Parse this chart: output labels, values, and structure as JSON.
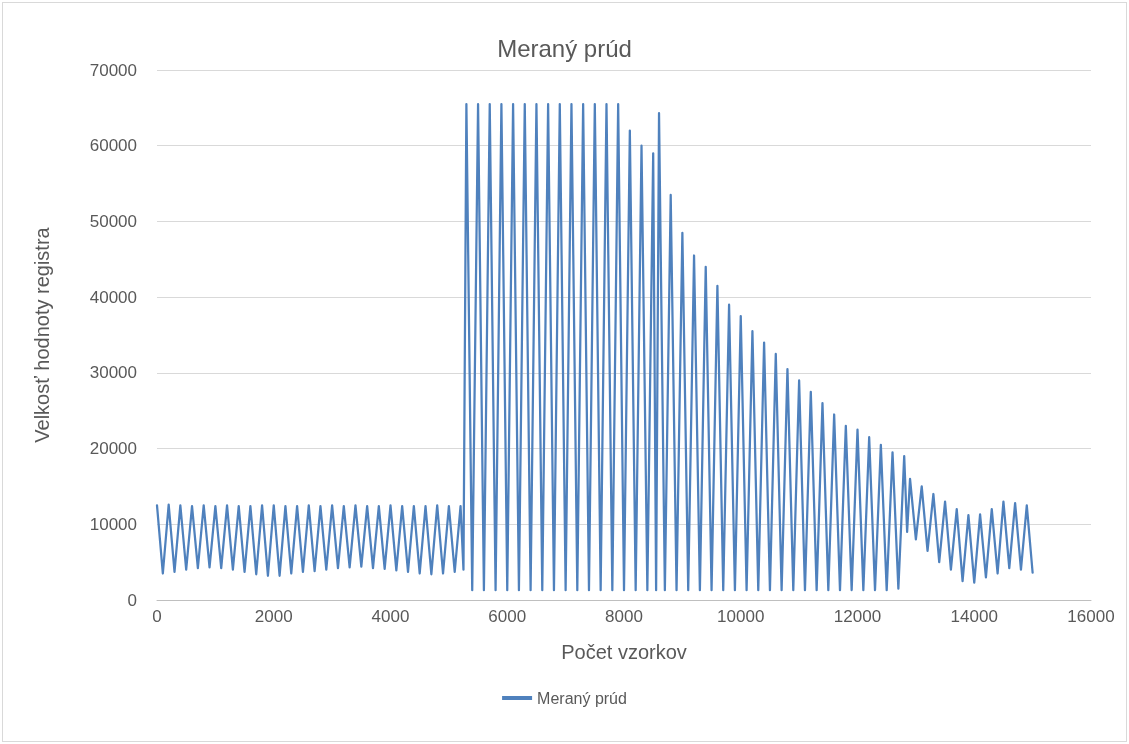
{
  "chart_data": {
    "type": "line",
    "title": "Meraný prúd",
    "xlabel": "Počet vzorkov",
    "ylabel": "Velkosť hodnoty registra",
    "xlim": [
      0,
      16000
    ],
    "xticks": [
      0,
      2000,
      4000,
      6000,
      8000,
      10000,
      12000,
      14000,
      16000
    ],
    "ylim": [
      0,
      70000
    ],
    "yticks": [
      0,
      10000,
      20000,
      30000,
      40000,
      50000,
      60000,
      70000
    ],
    "grid": "y",
    "legend": "bottom",
    "marker": "none",
    "line_style": "solid",
    "series": [
      {
        "name": "Meraný prúd",
        "color": "#4f81bd",
        "x": [
          0,
          100,
          200,
          300,
          400,
          500,
          600,
          700,
          800,
          900,
          1000,
          1100,
          1200,
          1300,
          1400,
          1500,
          1600,
          1700,
          1800,
          1900,
          2000,
          2100,
          2200,
          2300,
          2400,
          2500,
          2600,
          2700,
          2800,
          2900,
          3000,
          3100,
          3200,
          3300,
          3400,
          3500,
          3600,
          3700,
          3800,
          3900,
          4000,
          4100,
          4200,
          4300,
          4400,
          4500,
          4600,
          4700,
          4800,
          4900,
          5000,
          5100,
          5200,
          5250,
          5300,
          5400,
          5500,
          5600,
          5700,
          5800,
          5900,
          6000,
          6100,
          6200,
          6300,
          6400,
          6500,
          6600,
          6700,
          6800,
          6900,
          7000,
          7100,
          7200,
          7300,
          7400,
          7500,
          7600,
          7700,
          7800,
          7900,
          8000,
          8100,
          8200,
          8300,
          8400,
          8500,
          8550,
          8600,
          8700,
          8800,
          8900,
          9000,
          9100,
          9200,
          9300,
          9400,
          9500,
          9600,
          9700,
          9800,
          9900,
          10000,
          10100,
          10200,
          10300,
          10400,
          10500,
          10600,
          10700,
          10800,
          10900,
          11000,
          11100,
          11200,
          11300,
          11400,
          11500,
          11600,
          11700,
          11800,
          11900,
          12000,
          12100,
          12200,
          12300,
          12400,
          12500,
          12600,
          12700,
          12800,
          12850,
          12900,
          13000,
          13100,
          13200,
          13300,
          13400,
          13500,
          13600,
          13700,
          13800,
          13900,
          14000,
          14100,
          14200,
          14300,
          14400,
          14500,
          14600,
          14700,
          14800,
          14900,
          15000
        ],
        "values": [
          12500,
          3500,
          12600,
          3700,
          12500,
          4000,
          12400,
          4200,
          12500,
          4300,
          12400,
          4200,
          12500,
          4000,
          12400,
          3700,
          12400,
          3400,
          12500,
          3200,
          12500,
          3200,
          12400,
          3500,
          12400,
          3700,
          12500,
          3800,
          12400,
          4000,
          12500,
          4200,
          12400,
          4300,
          12500,
          4400,
          12400,
          4200,
          12400,
          4100,
          12500,
          3900,
          12400,
          3700,
          12400,
          3500,
          12400,
          3400,
          12500,
          3500,
          12400,
          3700,
          12400,
          4000,
          65500,
          1300,
          65500,
          1300,
          65500,
          1300,
          65500,
          1300,
          65500,
          1300,
          65500,
          1300,
          65500,
          1300,
          65500,
          1300,
          65500,
          1300,
          65500,
          1300,
          65500,
          1300,
          65500,
          1300,
          65500,
          1300,
          65500,
          1300,
          62000,
          1300,
          60000,
          1300,
          59000,
          1300,
          64300,
          1300,
          53500,
          1300,
          48500,
          1300,
          45500,
          1300,
          44000,
          1300,
          41500,
          1300,
          39000,
          1300,
          37500,
          1300,
          35500,
          1300,
          34000,
          1300,
          32500,
          1300,
          30500,
          1300,
          29000,
          1300,
          27500,
          1300,
          26000,
          1300,
          24500,
          1300,
          23000,
          1300,
          22500,
          1300,
          21500,
          1300,
          20500,
          1300,
          19500,
          1500,
          19000,
          9000,
          16000,
          8000,
          15000,
          6500,
          14000,
          5000,
          13000,
          4000,
          12000,
          2500,
          11200,
          2300,
          11300,
          3000,
          12000,
          3500,
          13000,
          4200,
          12800,
          4000,
          12500,
          3600
        ]
      }
    ]
  }
}
